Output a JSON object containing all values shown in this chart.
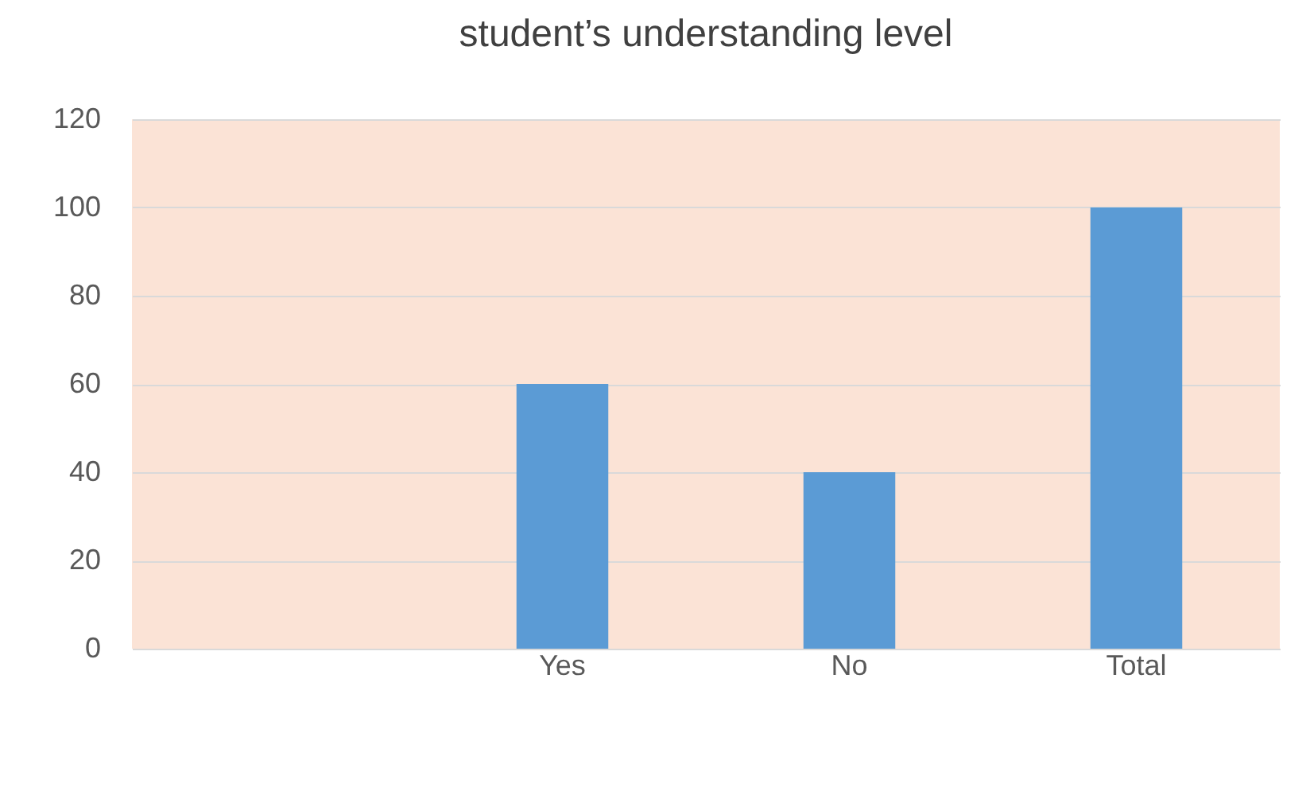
{
  "chart_data": {
    "type": "bar",
    "title": "student’s understanding level",
    "categories": [
      null,
      "Yes",
      "No",
      "Total"
    ],
    "values": [
      null,
      60,
      40,
      100
    ],
    "color": "#5b9bd5",
    "ylim": [
      0,
      120
    ],
    "yticks": [
      0,
      20,
      40,
      60,
      80,
      100,
      120
    ],
    "grid": "y"
  }
}
